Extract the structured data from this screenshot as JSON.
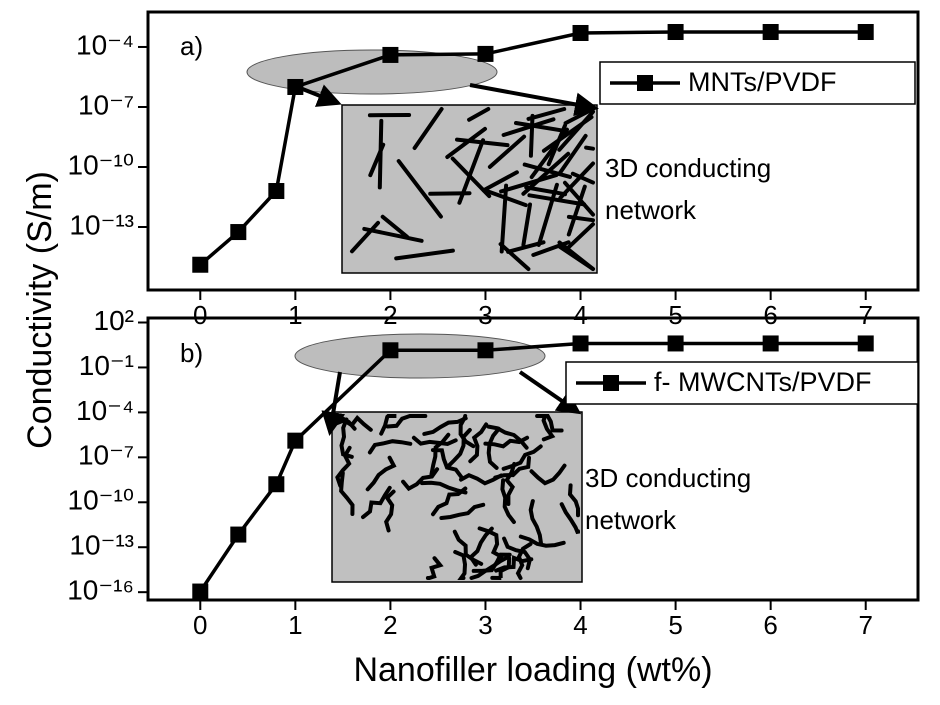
{
  "chart_data": [
    {
      "type": "line",
      "panel_label": "a)",
      "y_label": "Conductivity (S/m)",
      "log_scale": true,
      "x": [
        0,
        0.4,
        0.8,
        1,
        2,
        3,
        4,
        5,
        6,
        7
      ],
      "series": [
        {
          "name": "MNTs/PVDF",
          "color": "#000000",
          "values": [
            1.3e-15,
            5.6e-14,
            6.3e-12,
            1e-06,
            4e-05,
            4.5e-05,
            0.0005,
            0.00056,
            0.00056,
            0.00056
          ]
        }
      ],
      "xlim": [
        -0.55,
        7.55
      ],
      "xticks": [
        0,
        1,
        2,
        3,
        4,
        5,
        6,
        7
      ],
      "ylim": [
        7.1e-17,
        0.0056
      ],
      "yticks": [
        {
          "value": 1e-13,
          "label": "10⁻¹³"
        },
        {
          "value": 1e-10,
          "label": "10⁻¹⁰"
        },
        {
          "value": 1e-07,
          "label": "10⁻⁷"
        },
        {
          "value": 0.0001,
          "label": "10⁻⁴"
        }
      ],
      "annotation": [
        "3D conducting",
        "network"
      ]
    },
    {
      "type": "line",
      "panel_label": "b)",
      "x_label": "Nanofiller loading (wt%)",
      "log_scale": true,
      "x": [
        0,
        0.4,
        0.8,
        1,
        2,
        3,
        4,
        5,
        6,
        7
      ],
      "series": [
        {
          "name": "f- MWCNTs/PVDF",
          "color": "#000000",
          "values": [
            1.1e-16,
            7e-13,
            1.6e-09,
            1.3e-06,
            1.4,
            1.4,
            4,
            4,
            4,
            4
          ]
        }
      ],
      "xlim": [
        -0.55,
        7.55
      ],
      "xticks": [
        0,
        1,
        2,
        3,
        4,
        5,
        6,
        7
      ],
      "ylim": [
        3e-17,
        200
      ],
      "yticks": [
        {
          "value": 1e-16,
          "label": "10⁻¹⁶"
        },
        {
          "value": 1e-13,
          "label": "10⁻¹³"
        },
        {
          "value": 1e-10,
          "label": "10⁻¹⁰"
        },
        {
          "value": 1e-07,
          "label": "10⁻⁷"
        },
        {
          "value": 0.0001,
          "label": "10⁻⁴"
        },
        {
          "value": 0.1,
          "label": "10⁻¹"
        },
        {
          "value": 100,
          "label": "10²"
        }
      ],
      "annotation": [
        "3D conducting",
        "network"
      ]
    }
  ]
}
